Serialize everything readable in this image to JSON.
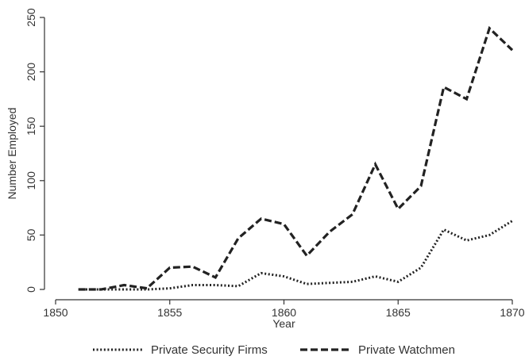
{
  "chart_data": {
    "type": "line",
    "xlabel": "Year",
    "ylabel": "Number Employed",
    "xlim": [
      1850,
      1870
    ],
    "ylim": [
      0,
      250
    ],
    "xticks": [
      1850,
      1855,
      1860,
      1865,
      1870
    ],
    "yticks": [
      0,
      50,
      100,
      150,
      200,
      250
    ],
    "grid": false,
    "legend_position": "bottom",
    "series": [
      {
        "name": "Private Security Firms",
        "style": "dotted",
        "color": "#222222",
        "x": [
          1851,
          1852,
          1853,
          1854,
          1855,
          1856,
          1857,
          1858,
          1859,
          1860,
          1861,
          1862,
          1863,
          1864,
          1865,
          1866,
          1867,
          1868,
          1869,
          1870
        ],
        "values": [
          0,
          0,
          0,
          0,
          1,
          4,
          4,
          3,
          15,
          12,
          5,
          6,
          7,
          12,
          7,
          20,
          55,
          45,
          50,
          63
        ]
      },
      {
        "name": "Private Watchmen",
        "style": "dashed",
        "color": "#222222",
        "x": [
          1851,
          1852,
          1853,
          1854,
          1855,
          1856,
          1857,
          1858,
          1859,
          1860,
          1861,
          1862,
          1863,
          1864,
          1865,
          1866,
          1867,
          1868,
          1869,
          1870
        ],
        "values": [
          0,
          0,
          4,
          1,
          20,
          21,
          11,
          47,
          65,
          60,
          31,
          53,
          69,
          115,
          74,
          95,
          186,
          175,
          240,
          220
        ]
      }
    ]
  }
}
